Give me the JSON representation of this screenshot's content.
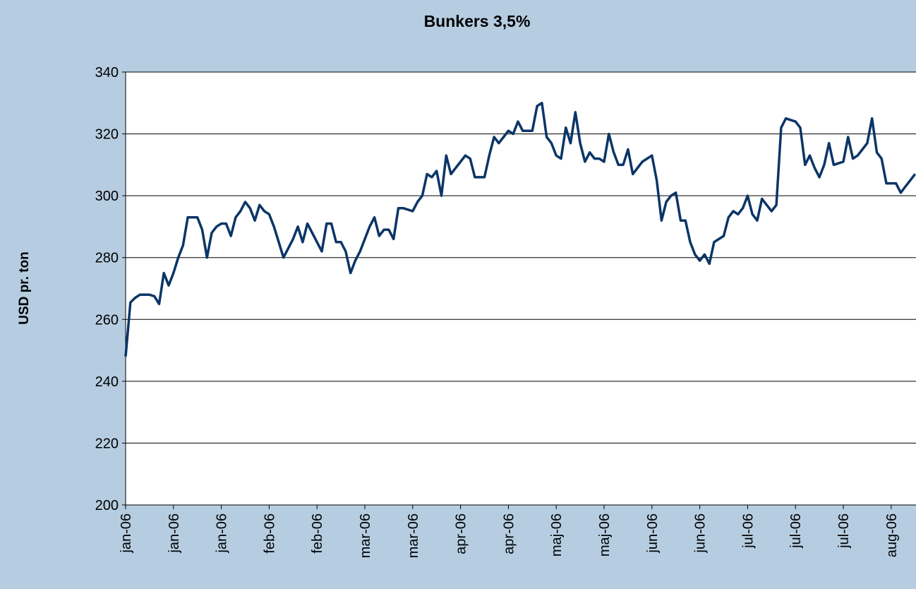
{
  "chart_data": {
    "type": "line",
    "title": "Bunkers 3,5%",
    "y_label": "USD pr. ton",
    "categories": [
      "jan-06",
      null,
      null,
      null,
      null,
      null,
      null,
      null,
      null,
      null,
      "jan-06",
      null,
      null,
      null,
      null,
      null,
      null,
      null,
      null,
      null,
      "jan-06",
      null,
      null,
      null,
      null,
      null,
      null,
      null,
      null,
      null,
      "feb-06",
      null,
      null,
      null,
      null,
      null,
      null,
      null,
      null,
      null,
      "feb-06",
      null,
      null,
      null,
      null,
      null,
      null,
      null,
      null,
      null,
      "mar-06",
      null,
      null,
      null,
      null,
      null,
      null,
      null,
      null,
      null,
      "mar-06",
      null,
      null,
      null,
      null,
      null,
      null,
      null,
      null,
      null,
      "apr-06",
      null,
      null,
      null,
      null,
      null,
      null,
      null,
      null,
      null,
      "apr-06",
      null,
      null,
      null,
      null,
      null,
      null,
      null,
      null,
      null,
      "maj-06",
      null,
      null,
      null,
      null,
      null,
      null,
      null,
      null,
      null,
      "maj-06",
      null,
      null,
      null,
      null,
      null,
      null,
      null,
      null,
      null,
      "jun-06",
      null,
      null,
      null,
      null,
      null,
      null,
      null,
      null,
      null,
      "jun-06",
      null,
      null,
      null,
      null,
      null,
      null,
      null,
      null,
      null,
      "jul-06",
      null,
      null,
      null,
      null,
      null,
      null,
      null,
      null,
      null,
      "jul-06",
      null,
      null,
      null,
      null,
      null,
      null,
      null,
      null,
      null,
      "jul-06",
      null,
      null,
      null,
      null,
      null,
      null,
      null,
      null,
      null,
      "aug-06",
      null,
      null,
      null,
      null,
      null
    ],
    "values": [
      248,
      265.5,
      267,
      268,
      268,
      268,
      267.5,
      265,
      275,
      271,
      275,
      280,
      284,
      293,
      293,
      293,
      289,
      280,
      288,
      290,
      291,
      291,
      287,
      293,
      295,
      298,
      296,
      292,
      297,
      295,
      294,
      290,
      285,
      280,
      283,
      286,
      290,
      285,
      291,
      288,
      285,
      282,
      291,
      291,
      285,
      285,
      282,
      275,
      279,
      282,
      286,
      290,
      293,
      287,
      289,
      289,
      286,
      296,
      296,
      295.5,
      295,
      298,
      300,
      307,
      306,
      308,
      300,
      313,
      307,
      309,
      311,
      313,
      312,
      306,
      306,
      306,
      313,
      319,
      317,
      319,
      321,
      320,
      324,
      321,
      321,
      321,
      329,
      330,
      319,
      317,
      313,
      312,
      322,
      317,
      327,
      317,
      311,
      314,
      312,
      312,
      311,
      320,
      314,
      310,
      310,
      315,
      307,
      309,
      311,
      312,
      313,
      305,
      292,
      298,
      300,
      301,
      292,
      292,
      285,
      281,
      279,
      281,
      278,
      285,
      286,
      287,
      293,
      295,
      294,
      296,
      300,
      294,
      292,
      299,
      297,
      295,
      297,
      322,
      325,
      324.5,
      324,
      322,
      310,
      313,
      309,
      306,
      310,
      317,
      310,
      310.5,
      311,
      319,
      312,
      313,
      315,
      317,
      325,
      314,
      312,
      304,
      304,
      304,
      301,
      303,
      305,
      307
    ],
    "color": "#0b3566",
    "ylim": [
      200,
      340
    ],
    "yticks": [
      200,
      220,
      240,
      260,
      280,
      300,
      320,
      340
    ],
    "grid": true
  }
}
